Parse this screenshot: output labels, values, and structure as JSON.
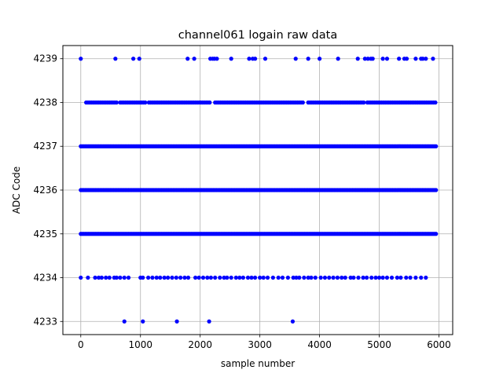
{
  "chart_data": {
    "type": "scatter",
    "title": "channel061 logain raw data",
    "xlabel": "sample number",
    "ylabel": "ADC Code",
    "xlim": [
      -300,
      6230
    ],
    "ylim": [
      4232.7,
      4239.3
    ],
    "xticks": [
      0,
      1000,
      2000,
      3000,
      4000,
      5000,
      6000
    ],
    "xtick_labels": [
      "0",
      "1000",
      "2000",
      "3000",
      "4000",
      "5000",
      "6000"
    ],
    "yticks": [
      4233,
      4234,
      4235,
      4236,
      4237,
      4238,
      4239
    ],
    "ytick_labels": [
      "4233",
      "4234",
      "4235",
      "4236",
      "4237",
      "4238",
      "4239"
    ],
    "grid": true,
    "marker_color": "#0000ff",
    "series": [
      {
        "values_by_level": {
          "4233": [
            730,
            1040,
            1610,
            2150,
            3550
          ],
          "4234": [
            0,
            120,
            240,
            300,
            350,
            420,
            480,
            560,
            600,
            660,
            730,
            800,
            1000,
            1040,
            1130,
            1200,
            1270,
            1330,
            1400,
            1460,
            1530,
            1600,
            1670,
            1740,
            1800,
            1920,
            1980,
            2050,
            2120,
            2180,
            2250,
            2330,
            2400,
            2450,
            2520,
            2600,
            2660,
            2720,
            2800,
            2860,
            2920,
            3000,
            3060,
            3130,
            3220,
            3310,
            3380,
            3470,
            3560,
            3610,
            3660,
            3740,
            3810,
            3860,
            3930,
            4020,
            4090,
            4160,
            4230,
            4300,
            4370,
            4430,
            4520,
            4570,
            4650,
            4730,
            4790,
            4870,
            4940,
            5000,
            5060,
            5130,
            5210,
            5300,
            5360,
            5450,
            5520,
            5610,
            5700,
            5780
          ],
          "4235": {
            "from": 0,
            "to": 5950,
            "step": 25
          },
          "4236": {
            "from": 0,
            "to": 5950,
            "step": 25
          },
          "4237": {
            "from": 0,
            "to": 5950,
            "step": 25
          },
          "4238": {
            "from": 90,
            "to": 5940,
            "step": 30,
            "gaps": [
              [
                610,
                660
              ],
              [
                1080,
                1130
              ],
              [
                2170,
                2230
              ],
              [
                3720,
                3800
              ],
              [
                4760,
                4800
              ]
            ]
          },
          "4239": [
            0,
            580,
            880,
            980,
            1790,
            1900,
            2170,
            2210,
            2240,
            2280,
            2520,
            2820,
            2880,
            2920,
            3090,
            3600,
            3810,
            4000,
            4310,
            4640,
            4760,
            4810,
            4860,
            4890,
            5060,
            5130,
            5330,
            5420,
            5460,
            5610,
            5700,
            5730,
            5780,
            5900
          ]
        }
      }
    ]
  }
}
